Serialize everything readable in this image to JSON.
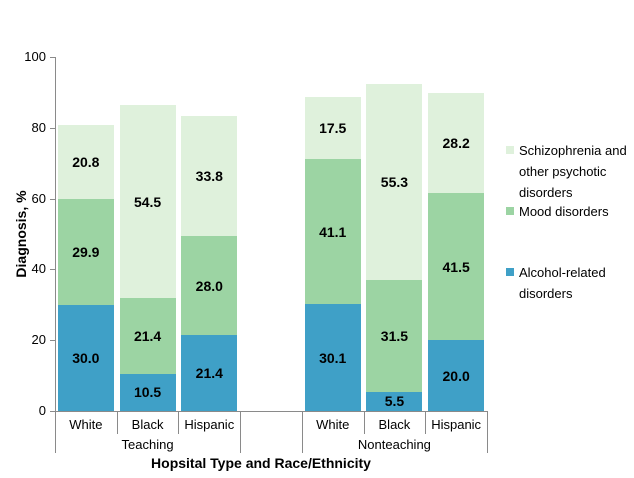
{
  "chart_data": {
    "type": "bar",
    "stacked": true,
    "title": "",
    "xlabel": "Hopsital Type and Race/Ethnicity",
    "ylabel": "Diagnosis, %",
    "ylim": [
      0,
      100
    ],
    "y_ticks": [
      100,
      80,
      60,
      40,
      20,
      0
    ],
    "grid": false,
    "legend_position": "right",
    "groups": [
      {
        "label": "Teaching",
        "categories": [
          "White",
          "Black",
          "Hispanic"
        ]
      },
      {
        "label": "Nonteaching",
        "categories": [
          "White",
          "Black",
          "Hispanic"
        ]
      }
    ],
    "slot_labels": [
      "White",
      "Black",
      "Hispanic",
      "",
      "White",
      "Black",
      "Hispanic"
    ],
    "series": [
      {
        "name": "Alcohol-related disorders",
        "color": "#3fa0c7",
        "values": [
          30.0,
          10.5,
          21.4,
          30.1,
          5.5,
          20.0
        ],
        "labels": [
          "30.0",
          "10.5",
          "21.4",
          "30.1",
          "5.5",
          "20.0"
        ]
      },
      {
        "name": "Mood disorders",
        "color": "#9cd4a3",
        "values": [
          29.9,
          21.4,
          28.0,
          41.1,
          31.5,
          41.5
        ],
        "labels": [
          "29.9",
          "21.4",
          "28.0",
          "41.1",
          "31.5",
          "41.5"
        ]
      },
      {
        "name": "Schizophrenia and other psychotic disorders",
        "color": "#dff1dc",
        "values": [
          20.8,
          54.5,
          33.8,
          17.5,
          55.3,
          28.2
        ],
        "labels": [
          "20.8",
          "54.5",
          "33.8",
          "17.5",
          "55.3",
          "28.2"
        ]
      }
    ],
    "legend": [
      {
        "label": "Schizophrenia and\nother psychotic\ndisorders",
        "color": "#dff1dc"
      },
      {
        "label": "Mood disorders",
        "color": "#9cd4a3"
      },
      {
        "label": "Alcohol-related\ndisorders",
        "color": "#3fa0c7"
      }
    ],
    "axis_color": "#8a8a8a"
  }
}
